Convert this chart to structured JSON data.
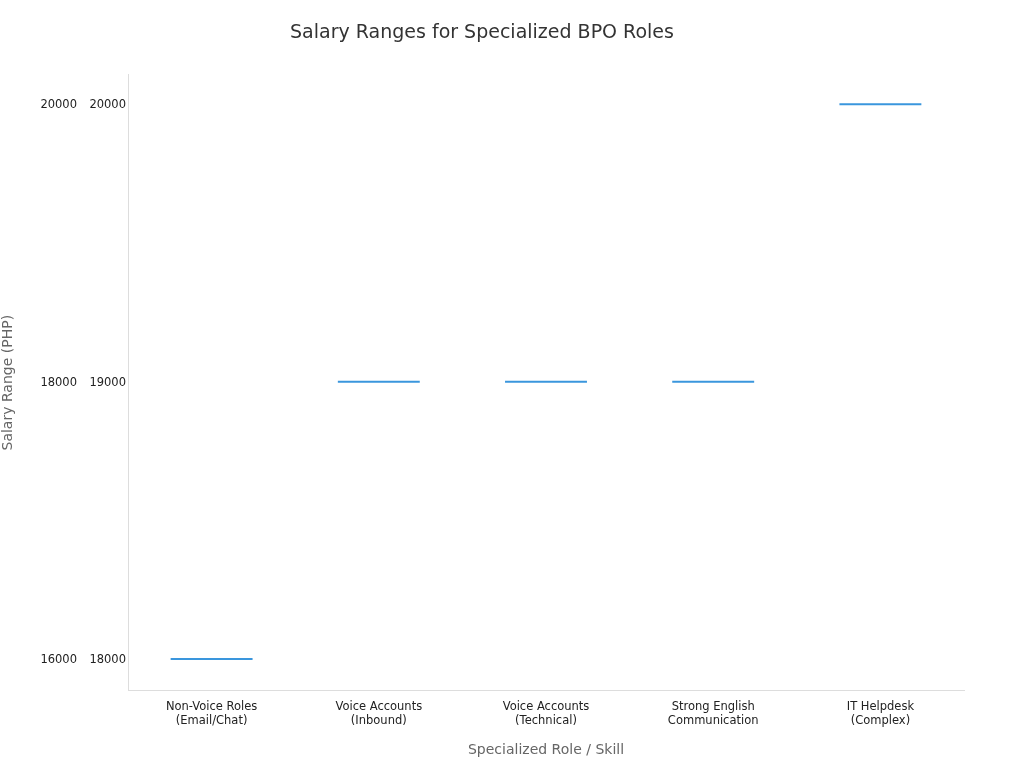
{
  "chart_data": {
    "type": "bar",
    "title": "Salary Ranges for Specialized BPO Roles",
    "xlabel": "Specialized Role / Skill",
    "ylabel": "Salary Range (PHP)",
    "categories": [
      "Non-Voice Roles\n(Email/Chat)",
      "Voice Accounts\n(Inbound)",
      "Voice Accounts\n(Technical)",
      "Strong English\nCommunication",
      "IT Helpdesk\n(Complex)"
    ],
    "base": [
      16000,
      18000,
      18000,
      18000,
      20000
    ],
    "values": [
      0,
      0,
      0,
      0,
      0
    ],
    "color": "#3a96dd",
    "ylim": [
      15780,
      20220
    ],
    "yticks": [
      16000,
      18000,
      20000
    ],
    "y2lim": [
      17890,
      20110
    ],
    "y2ticks": [
      18000,
      19000,
      20000
    ],
    "grid": false,
    "legend": false
  }
}
